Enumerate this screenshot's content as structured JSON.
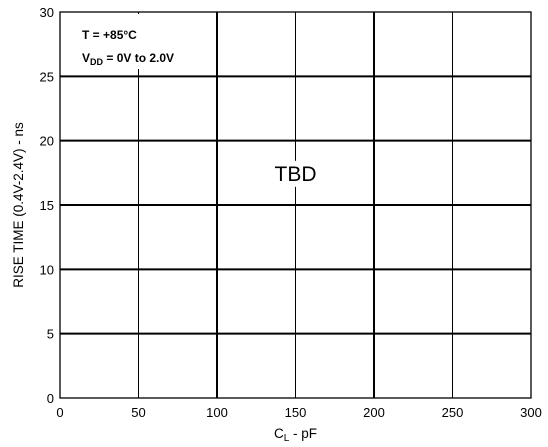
{
  "chart_data": {
    "type": "line",
    "series": [],
    "xlim": [
      0,
      300
    ],
    "ylim": [
      0,
      30
    ],
    "xticks": [
      "0",
      "50",
      "100",
      "150",
      "200",
      "250",
      "300"
    ],
    "yticks": [
      "0",
      "5",
      "10",
      "15",
      "20",
      "25",
      "30"
    ],
    "x_major_step": 100,
    "x_minor_step": 50,
    "y_step": 5,
    "grid": true,
    "xlabel": {
      "main": "C",
      "sub": "L",
      "rest": " - pF"
    },
    "ylabel": "RISE TIME (0.4V-2.4V) - ns",
    "annotations": {
      "line1": "T = +85°C",
      "line2_main": "V",
      "line2_sub": "DD",
      "line2_rest": " = 0V to 2.0V",
      "center": "TBD"
    }
  }
}
